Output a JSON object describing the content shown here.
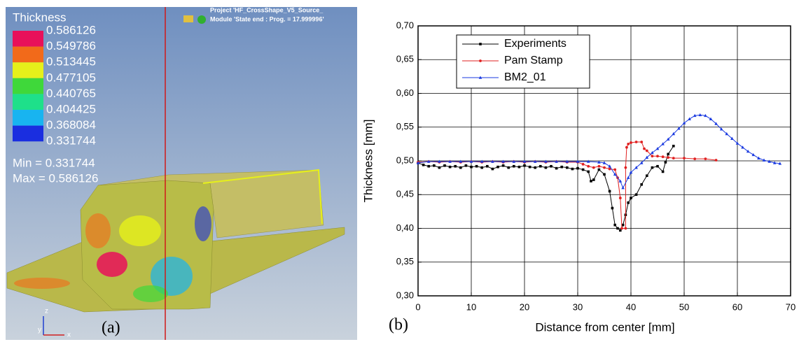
{
  "panel_a": {
    "legend_title": "Thickness",
    "legend_labels": [
      "0.586126",
      "0.549786",
      "0.513445",
      "0.477105",
      "0.440765",
      "0.404425",
      "0.368084",
      "0.331744"
    ],
    "legend_colors": [
      "#e8105a",
      "#f26a1a",
      "#e6f01a",
      "#3fd83a",
      "#1ee08a",
      "#18b4f0",
      "#1a2ee0"
    ],
    "min_text": "Min = 0.331744",
    "max_text": "Max = 0.586126",
    "project_text": "Project 'HF_CrossShape_V5_Source_",
    "module_text": "Module 'State end : Prog. = 17.999996'",
    "axis_z": "z",
    "axis_y": "y",
    "axis_x": "x",
    "caption": "(a)"
  },
  "chart_data": {
    "type": "line",
    "caption": "(b)",
    "x_label": "Distance from center [mm]",
    "y_label": "Thickness [mm]",
    "xlim": [
      0,
      70
    ],
    "xticks": [
      0,
      10,
      20,
      30,
      40,
      50,
      60,
      70
    ],
    "ylim": [
      0.3,
      0.7
    ],
    "yticks": [
      {
        "value": 0.3,
        "label": "0,30"
      },
      {
        "value": 0.35,
        "label": "0,35"
      },
      {
        "value": 0.4,
        "label": "0,40"
      },
      {
        "value": 0.45,
        "label": "0,45"
      },
      {
        "value": 0.5,
        "label": "0,50"
      },
      {
        "value": 0.55,
        "label": "0,55"
      },
      {
        "value": 0.6,
        "label": "0,60"
      },
      {
        "value": 0.65,
        "label": "0,65"
      },
      {
        "value": 0.7,
        "label": "0,70"
      }
    ],
    "grid": true,
    "legend": "upper-left",
    "series": [
      {
        "name": "Experiments",
        "color": "#000000",
        "marker": "square",
        "x": [
          0,
          1,
          2,
          3,
          4,
          5,
          6,
          7,
          8,
          9,
          10,
          11,
          12,
          13,
          14,
          15,
          16,
          17,
          18,
          19,
          20,
          21,
          22,
          23,
          24,
          25,
          26,
          27,
          28,
          29,
          30,
          31,
          32,
          32.5,
          33,
          34,
          35,
          36,
          36.5,
          37,
          37.5,
          38,
          38.5,
          39,
          39.5,
          40,
          41,
          42,
          43,
          44,
          45,
          46,
          46.5,
          47,
          48
        ],
        "values": [
          0.497,
          0.494,
          0.492,
          0.493,
          0.49,
          0.493,
          0.491,
          0.492,
          0.49,
          0.493,
          0.491,
          0.492,
          0.49,
          0.492,
          0.488,
          0.491,
          0.493,
          0.49,
          0.492,
          0.491,
          0.493,
          0.491,
          0.49,
          0.492,
          0.49,
          0.492,
          0.489,
          0.491,
          0.49,
          0.488,
          0.489,
          0.487,
          0.484,
          0.47,
          0.472,
          0.487,
          0.48,
          0.455,
          0.43,
          0.405,
          0.4,
          0.397,
          0.405,
          0.42,
          0.438,
          0.445,
          0.45,
          0.465,
          0.478,
          0.49,
          0.492,
          0.484,
          0.498,
          0.51,
          0.522
        ]
      },
      {
        "name": "Pam Stamp",
        "color": "#e02020",
        "marker": "circle",
        "x": [
          0,
          2,
          4,
          6,
          8,
          10,
          12,
          14,
          16,
          18,
          20,
          22,
          24,
          26,
          28,
          30,
          31,
          32,
          33,
          34,
          35,
          36,
          37,
          37.5,
          38,
          38.3,
          39,
          39,
          39.2,
          39.5,
          40,
          41,
          42,
          42.5,
          43,
          44,
          45,
          46,
          47,
          48,
          50,
          52,
          54,
          56
        ],
        "values": [
          0.498,
          0.499,
          0.498,
          0.499,
          0.498,
          0.499,
          0.498,
          0.499,
          0.498,
          0.499,
          0.498,
          0.499,
          0.498,
          0.499,
          0.498,
          0.498,
          0.495,
          0.492,
          0.49,
          0.492,
          0.49,
          0.488,
          0.487,
          0.475,
          0.445,
          0.4,
          0.4,
          0.49,
          0.52,
          0.525,
          0.527,
          0.528,
          0.528,
          0.518,
          0.515,
          0.507,
          0.507,
          0.506,
          0.505,
          0.504,
          0.504,
          0.503,
          0.503,
          0.501
        ]
      },
      {
        "name": "BM2_01",
        "color": "#1a3ae0",
        "marker": "triangle",
        "x": [
          0,
          2,
          4,
          6,
          8,
          10,
          12,
          14,
          16,
          18,
          20,
          22,
          24,
          26,
          28,
          30,
          32,
          34,
          35,
          36,
          37,
          38,
          38.5,
          39.5,
          40,
          41,
          42,
          43,
          44,
          45,
          46,
          47,
          48,
          49,
          50,
          51,
          52,
          53,
          54,
          55,
          56,
          57,
          58,
          59,
          60,
          61,
          62,
          63,
          64,
          65,
          66,
          67,
          68
        ],
        "values": [
          0.497,
          0.499,
          0.499,
          0.499,
          0.499,
          0.499,
          0.499,
          0.499,
          0.499,
          0.499,
          0.499,
          0.499,
          0.499,
          0.499,
          0.499,
          0.499,
          0.499,
          0.498,
          0.497,
          0.492,
          0.48,
          0.47,
          0.46,
          0.475,
          0.483,
          0.49,
          0.497,
          0.505,
          0.512,
          0.518,
          0.525,
          0.532,
          0.54,
          0.548,
          0.556,
          0.562,
          0.567,
          0.568,
          0.567,
          0.562,
          0.555,
          0.547,
          0.54,
          0.533,
          0.526,
          0.52,
          0.514,
          0.509,
          0.504,
          0.501,
          0.499,
          0.497,
          0.496
        ]
      }
    ]
  }
}
